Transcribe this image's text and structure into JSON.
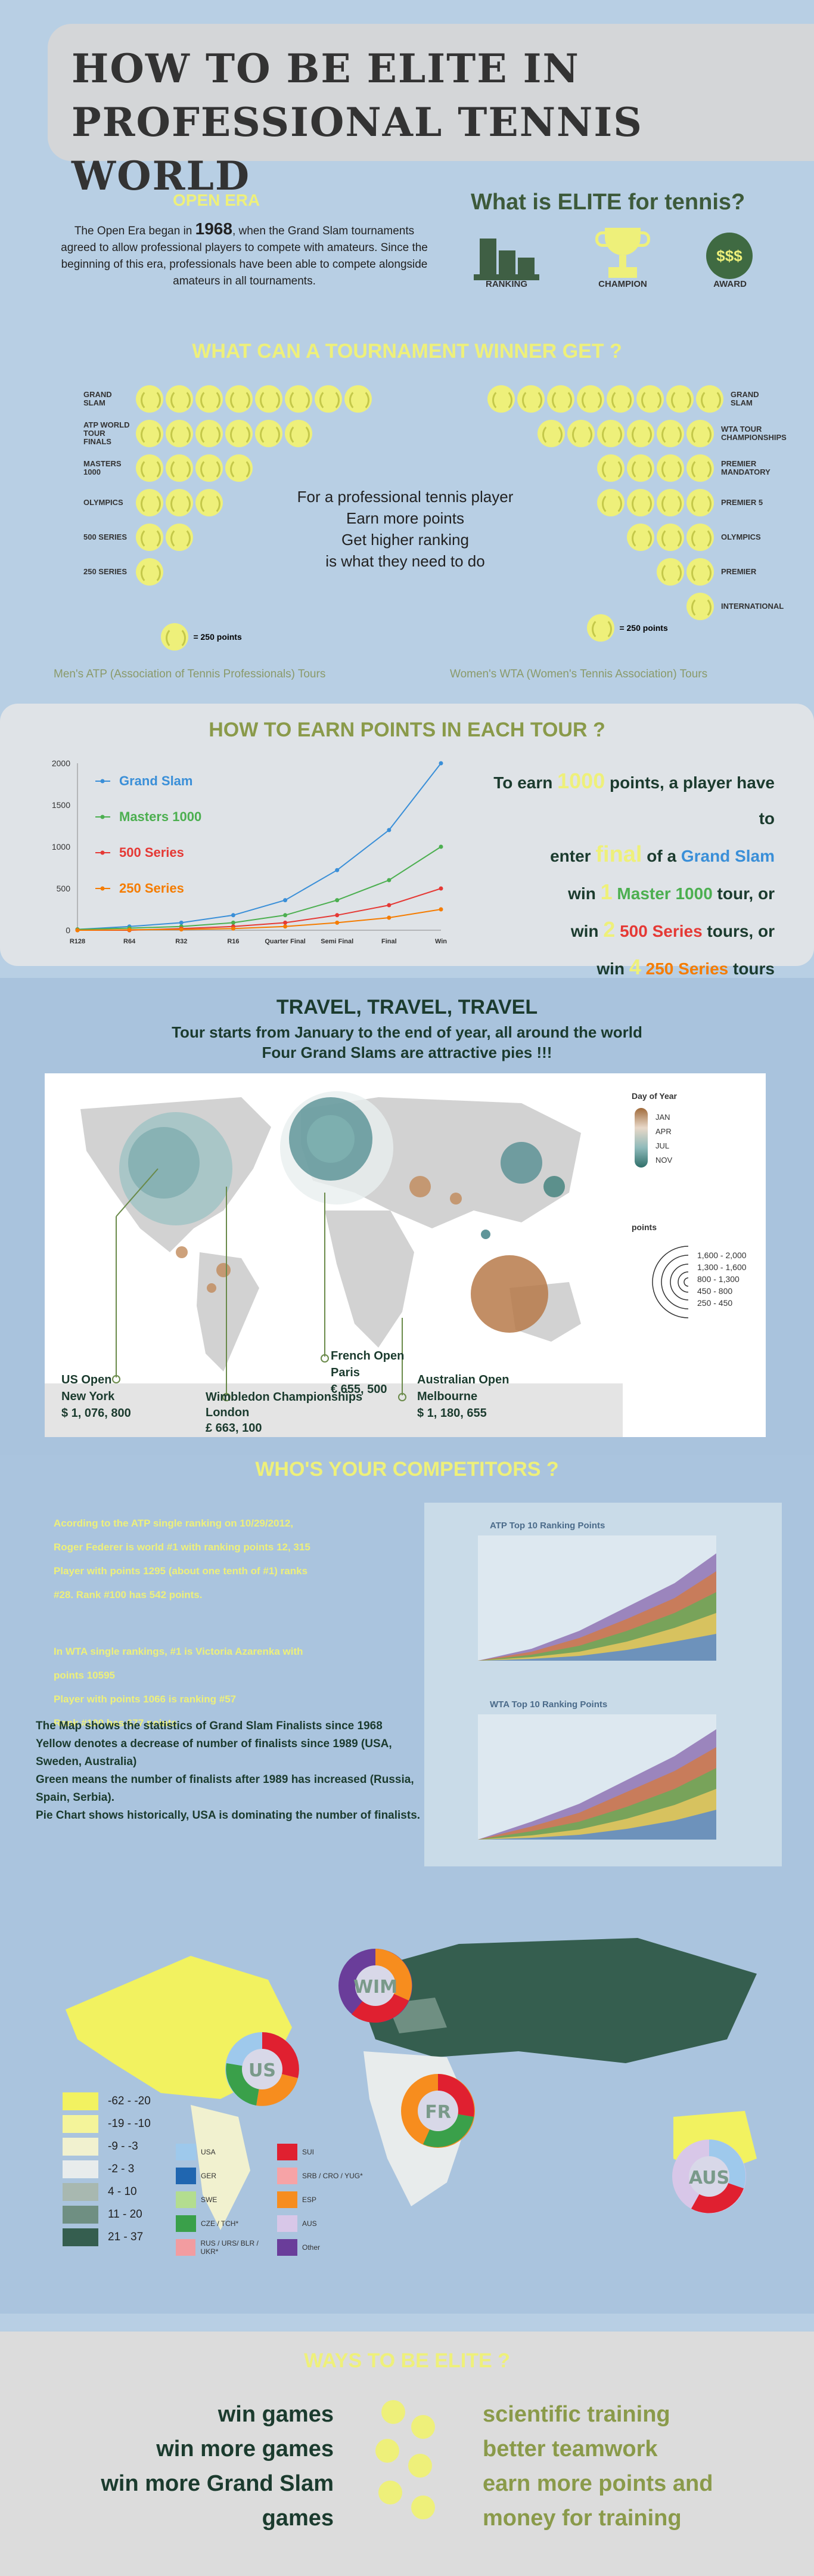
{
  "title": {
    "line1": "HOW TO BE ELITE IN",
    "line2": "PROFESSIONAL TENNIS WORLD"
  },
  "open_era": {
    "heading": "OPEN ERA",
    "text_a": "The Open Era began in ",
    "year": "1968",
    "text_b": ", when the Grand Slam tournaments agreed to allow professional players to compete with amateurs. Since the beginning of this era, professionals have been able to compete alongside amateurs in all tournaments."
  },
  "elite": {
    "heading": "What is ELITE for tennis?",
    "icons": [
      {
        "name": "ranking-icon",
        "label": "RANKING"
      },
      {
        "name": "trophy-icon",
        "label": "CHAMPION"
      },
      {
        "name": "money-icon",
        "label": "AWARD",
        "text": "$$$"
      }
    ]
  },
  "winner": {
    "heading": "WHAT CAN A TOURNAMENT WINNER GET  ?",
    "atp_rows": [
      {
        "label": "GRAND SLAM",
        "balls": 8
      },
      {
        "label": "ATP WORLD TOUR FINALS",
        "balls": 6
      },
      {
        "label": "MASTERS 1000",
        "balls": 4
      },
      {
        "label": "OLYMPICS",
        "balls": 3
      },
      {
        "label": "500 SERIES",
        "balls": 2
      },
      {
        "label": "250 SERIES",
        "balls": 1
      }
    ],
    "wta_rows": [
      {
        "label": "GRAND SLAM",
        "balls": 8
      },
      {
        "label": "WTA TOUR CHAMPIONSHIPS",
        "balls": 6
      },
      {
        "label": "PREMIER MANDATORY",
        "balls": 4
      },
      {
        "label": "PREMIER 5",
        "balls": 4
      },
      {
        "label": "OLYMPICS",
        "balls": 3
      },
      {
        "label": "PREMIER",
        "balls": 2
      },
      {
        "label": "INTERNATIONAL",
        "balls": 1
      }
    ],
    "legend": "= 250 points",
    "center_lines": [
      "For a professional tennis player",
      "Earn more points",
      "Get higher ranking",
      "is what they need to do"
    ],
    "atp_caption": "Men's ATP (Association of Tennis Professionals) Tours",
    "wta_caption": "Women's WTA (Women's Tennis Association) Tours"
  },
  "earn": {
    "heading": "HOW TO EARN POINTS IN EACH TOUR ?",
    "lines": [
      {
        "a": "To earn ",
        "b": "1000",
        "c": " points, a player have to"
      },
      {
        "a": "enter ",
        "b": "final",
        "c": " of a ",
        "d": "Grand Slam"
      },
      {
        "a": "win ",
        "b": "1",
        "c": " Master 1000",
        "d": "  tour, or"
      },
      {
        "a": "win ",
        "b": "2",
        "c": "  500 Series",
        "d": " tours, or"
      },
      {
        "a": "win ",
        "b": "4",
        "c": "  250 Series",
        "d": " tours"
      }
    ]
  },
  "chart_data": {
    "type": "line",
    "categories": [
      "R128",
      "R64",
      "R32",
      "R16",
      "Quarter Final",
      "Semi Final",
      "Final",
      "Win"
    ],
    "ylim": [
      0,
      2000
    ],
    "yticks": [
      "0",
      "500",
      "1000",
      "1500",
      "2000"
    ],
    "series": [
      {
        "name": "Grand Slam",
        "color": "#3a8fd8",
        "values": [
          10,
          45,
          90,
          180,
          360,
          720,
          1200,
          2000
        ]
      },
      {
        "name": "Masters 1000",
        "color": "#4caf50",
        "values": [
          10,
          25,
          45,
          90,
          180,
          360,
          600,
          1000
        ]
      },
      {
        "name": "500 Series",
        "color": "#e53935",
        "values": [
          0,
          0,
          20,
          45,
          90,
          180,
          300,
          500
        ]
      },
      {
        "name": "250 Series",
        "color": "#f57c00",
        "values": [
          0,
          5,
          10,
          20,
          45,
          90,
          150,
          250
        ]
      }
    ]
  },
  "travel": {
    "heading": "TRAVEL, TRAVEL, TRAVEL",
    "sub1": "Tour starts from January to the end of year, all around the world",
    "sub2": "Four Grand Slams are attractive pies !!!",
    "legend_title": "Day of Year",
    "months": [
      "JAN",
      "APR",
      "JUL",
      "NOV"
    ],
    "points_title": "points",
    "points_ranges": [
      "1,600 - 2,000",
      "1,300 - 1,600",
      "800 - 1,300",
      "450 - 800",
      "250 - 450"
    ],
    "callouts": [
      {
        "name": "Wimbledon Championships",
        "city": "London",
        "prize": "£ 663, 100"
      },
      {
        "name": "French Open",
        "city": "Paris",
        "prize": "€ 655, 500"
      },
      {
        "name": "US Open",
        "city": "New York",
        "prize": "$ 1, 076, 800"
      },
      {
        "name": "Australian Open",
        "city": "Melbourne",
        "prize": "$ 1, 180, 655"
      }
    ]
  },
  "competitors": {
    "heading": "WHO'S YOUR COMPETITORS ?",
    "atp_text": [
      "Acording to the ATP single ranking on 10/29/2012,",
      "Roger Federer is world #1 with ranking points 12, 315",
      "Player with points 1295 (about one tenth of #1) ranks",
      "#28. Rank #100 has 542 points."
    ],
    "wta_text": [
      "In WTA single rankings, #1 is Victoria Azarenka with",
      "points 10595",
      "Player with points 1066 is ranking #57",
      "Rank #100 has 677 points."
    ],
    "atp_chart_title": "ATP Top 10 Ranking Points",
    "wta_chart_title": "WTA Top 10 Ranking Points",
    "map_text": [
      "The Map shows the statistics of Grand Slam Finalists since 1968",
      "Yellow denotes a decrease of number of finalists since 1989 (USA, Sweden, Australia)",
      "Green means the number of finalists after 1989 has increased (Russia, Spain, Serbia).",
      "Pie Chart shows historically, USA is dominating the number of finalists."
    ],
    "pies": [
      "WIM",
      "US",
      "FR",
      "AUS"
    ],
    "scale": [
      {
        "label": "-62 - -20",
        "color": "#f2f260"
      },
      {
        "label": "-19 - -10",
        "color": "#f4f49a"
      },
      {
        "label": "-9 - -3",
        "color": "#f1f1cf"
      },
      {
        "label": "-2 - 3",
        "color": "#e8ecec"
      },
      {
        "label": "4 - 10",
        "color": "#a8b8b0"
      },
      {
        "label": "11 - 20",
        "color": "#6f8f82"
      },
      {
        "label": "21 - 37",
        "color": "#355e4f"
      }
    ],
    "countries": [
      {
        "label": "USA",
        "color": "#9ec9ec"
      },
      {
        "label": "SUI",
        "color": "#e02030"
      },
      {
        "label": "GER",
        "color": "#2066b0"
      },
      {
        "label": "SRB / CRO / YUG*",
        "color": "#f6a3a6"
      },
      {
        "label": "SWE",
        "color": "#b3dd8f"
      },
      {
        "label": "ESP",
        "color": "#f78d1e"
      },
      {
        "label": "CZE / TCH*",
        "color": "#3aa04a"
      },
      {
        "label": "AUS",
        "color": "#d8c7e8"
      },
      {
        "label": "RUS / URS/ BLR / UKR*",
        "color": "#f29ca0"
      },
      {
        "label": "Other",
        "color": "#6a3d9a"
      }
    ]
  },
  "ways": {
    "heading": "WAYS TO BE ELITE ?",
    "left": [
      "win games",
      "win more games",
      "win more Grand Slam",
      "games"
    ],
    "right": [
      "scientific training",
      "better teamwork",
      "earn more points and",
      "money for training"
    ]
  }
}
